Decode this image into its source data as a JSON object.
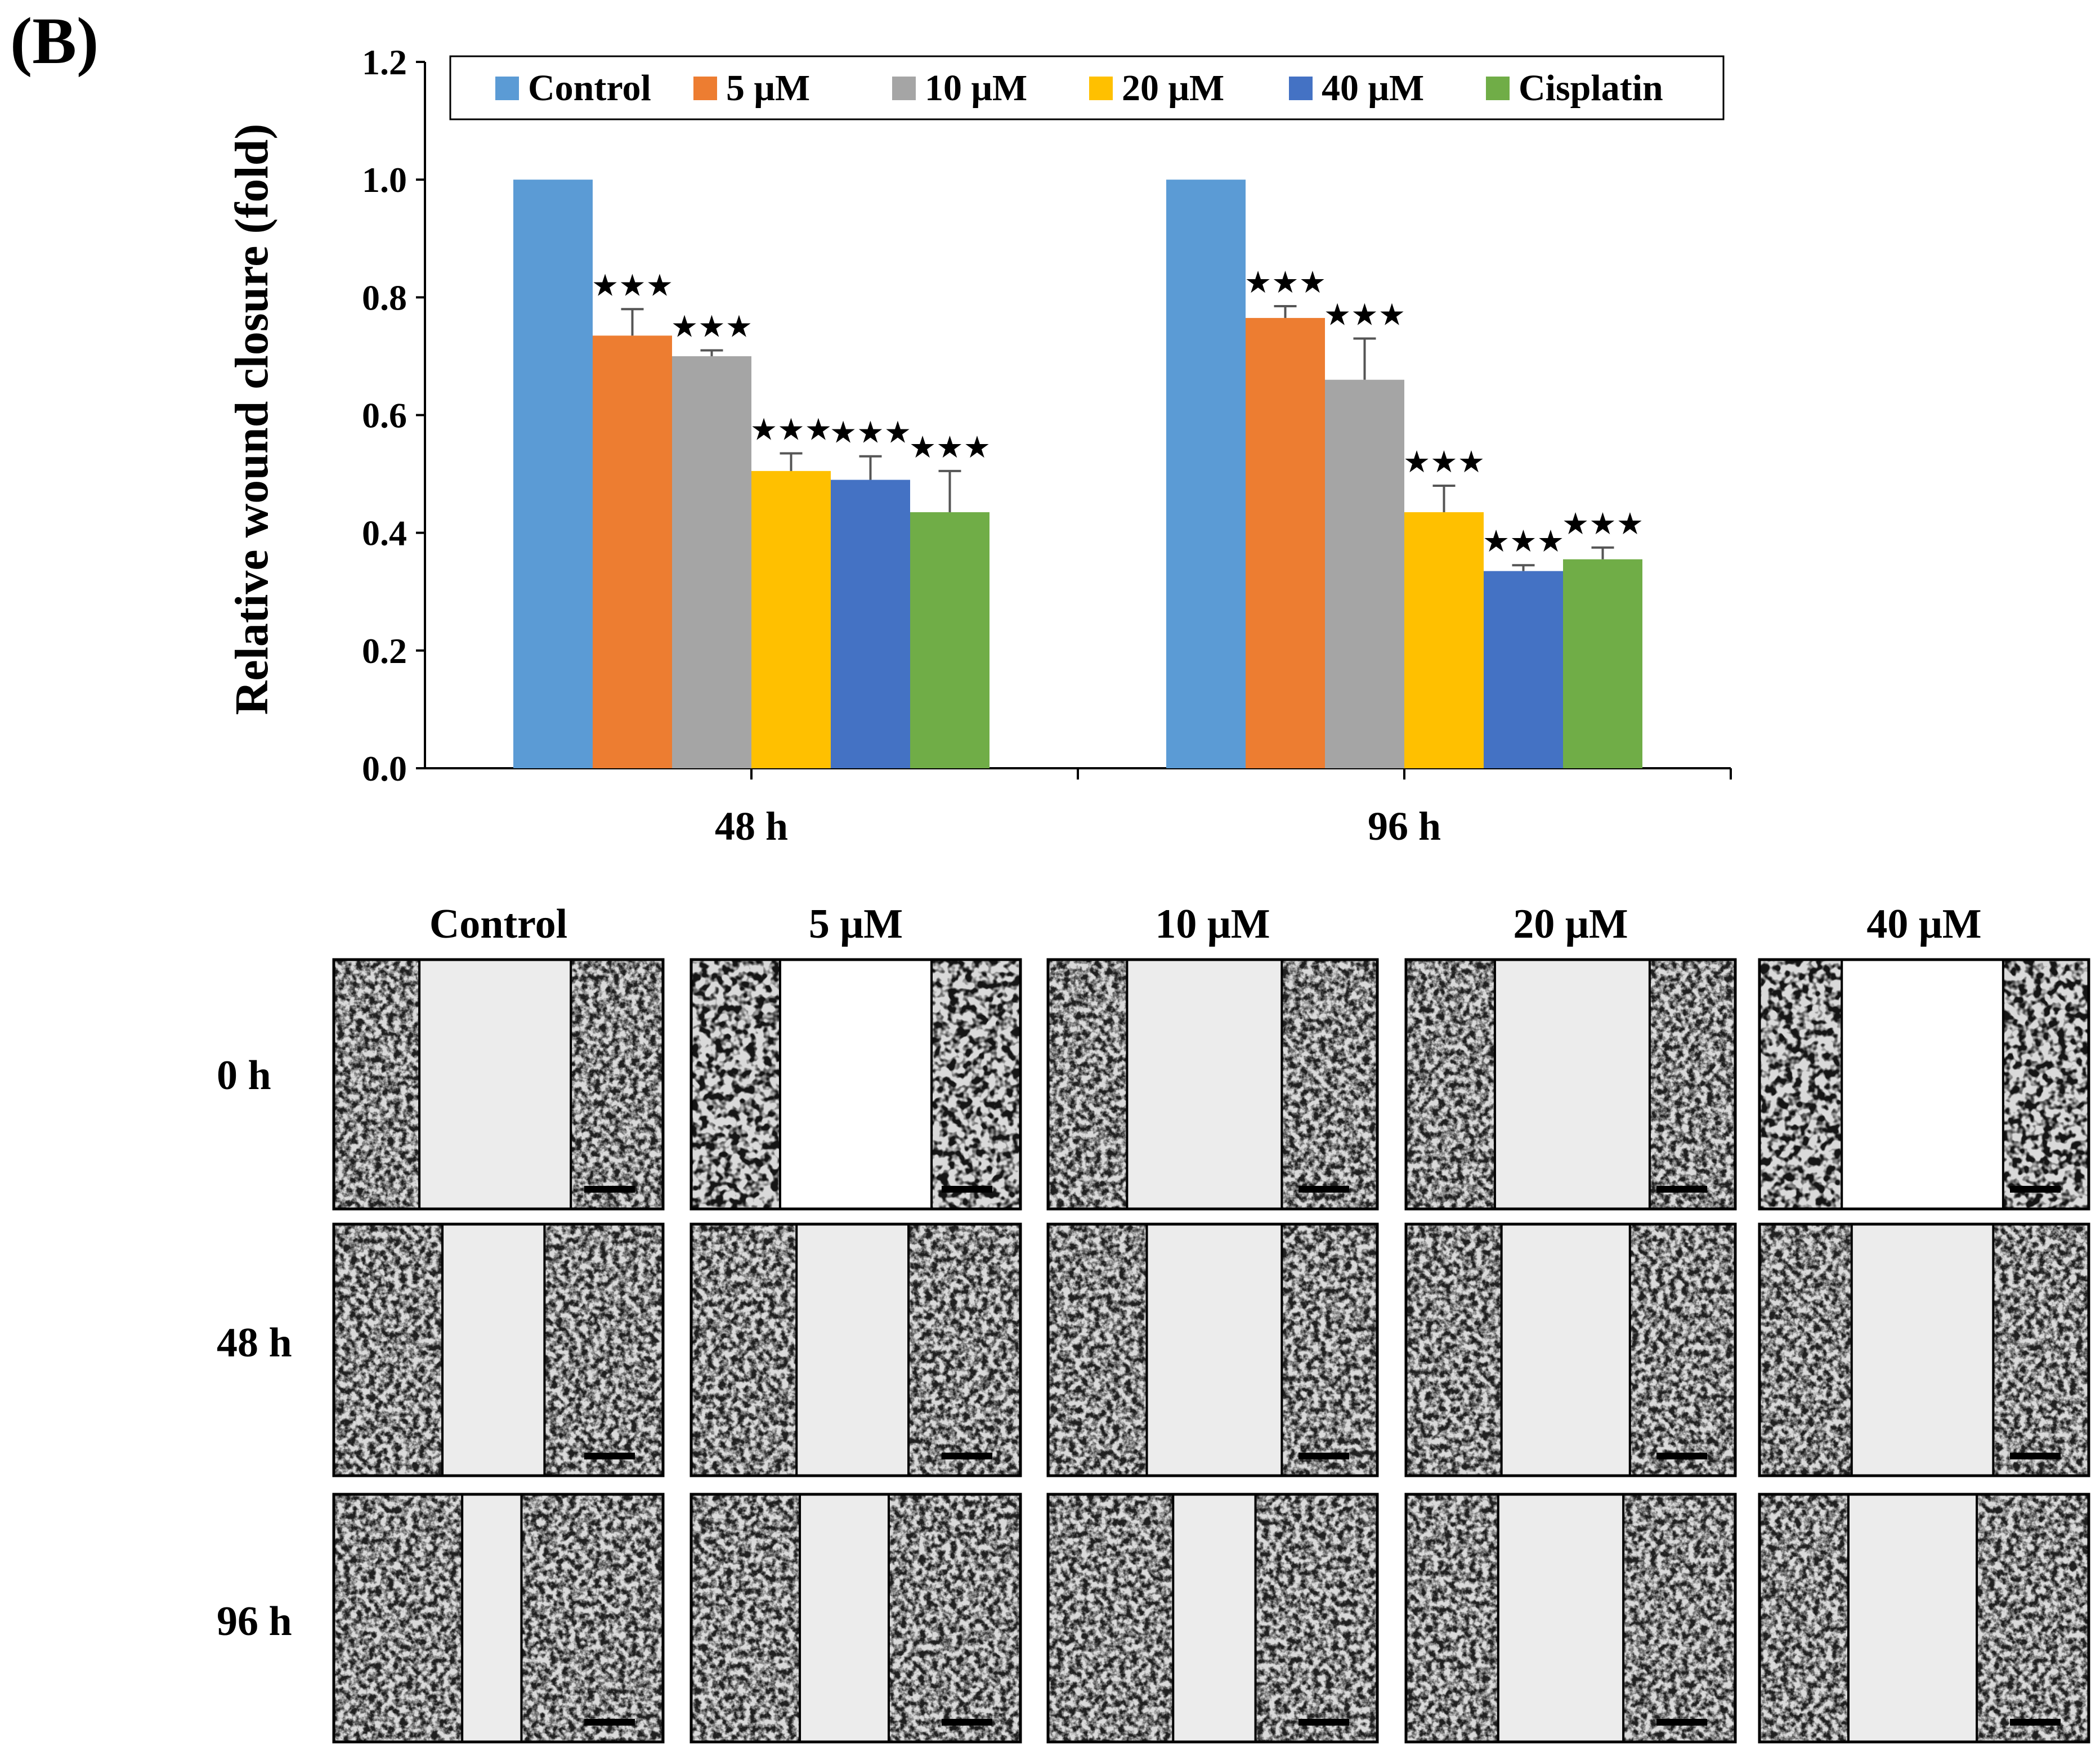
{
  "panel_label": "(B)",
  "chart_data": {
    "type": "bar",
    "title": "",
    "xlabel": "",
    "ylabel": "Relative wound closure (fold)",
    "ylim": [
      0,
      1.2
    ],
    "yticks": [
      "0.0",
      "0.2",
      "0.4",
      "0.6",
      "0.8",
      "1.0",
      "1.2"
    ],
    "legend_position": "top",
    "categories": [
      "48 h",
      "96 h"
    ],
    "significance_marker": "★★★",
    "series": [
      {
        "name": "Control",
        "color": "#5B9BD5",
        "values": [
          1.0,
          1.0
        ],
        "errors": [
          0,
          0
        ],
        "significant": [
          false,
          false
        ]
      },
      {
        "name": "5 μM",
        "color": "#ED7D31",
        "values": [
          0.735,
          0.765
        ],
        "errors": [
          0.045,
          0.02
        ],
        "significant": [
          true,
          true
        ]
      },
      {
        "name": "10 μM",
        "color": "#A5A5A5",
        "values": [
          0.7,
          0.66
        ],
        "errors": [
          0.01,
          0.07
        ],
        "significant": [
          true,
          true
        ]
      },
      {
        "name": "20 μM",
        "color": "#FFC000",
        "values": [
          0.505,
          0.435
        ],
        "errors": [
          0.03,
          0.045
        ],
        "significant": [
          true,
          true
        ]
      },
      {
        "name": "40 μM",
        "color": "#4472C4",
        "values": [
          0.49,
          0.335
        ],
        "errors": [
          0.04,
          0.01
        ],
        "significant": [
          true,
          true
        ]
      },
      {
        "name": "Cisplatin",
        "color": "#70AD47",
        "values": [
          0.435,
          0.355
        ],
        "errors": [
          0.07,
          0.02
        ],
        "significant": [
          true,
          true
        ]
      }
    ]
  },
  "micrographs": {
    "columns": [
      "Control",
      "5 μM",
      "10 μM",
      "20 μM",
      "40 μM"
    ],
    "rows": [
      "0 h",
      "48 h",
      "96 h"
    ]
  }
}
